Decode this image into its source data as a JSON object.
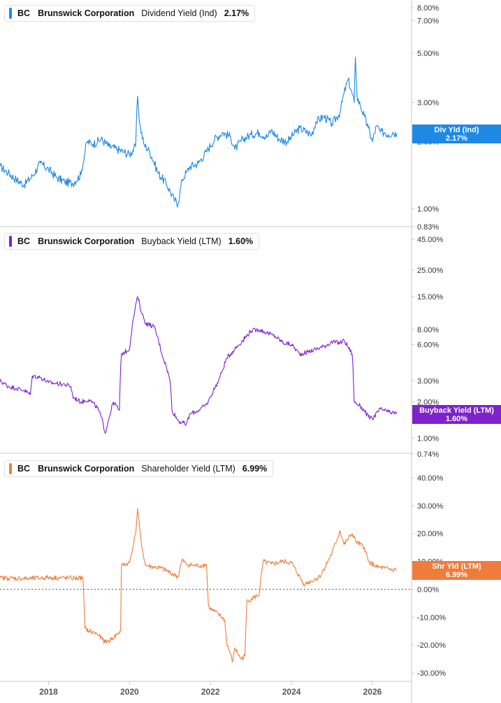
{
  "chart_data": [
    {
      "type": "line",
      "ticker": "BC",
      "company": "Brunswick Corporation",
      "metric": "Dividend Yield (Ind)",
      "value_label": "2.17%",
      "badge_title": "Div Yld (Ind)",
      "badge_value": "2.17%",
      "color": "#1e88e5",
      "scale": "log",
      "ylim": [
        0.83,
        9.0
      ],
      "y_ticks": [
        {
          "value": 8.0,
          "label": "8.00%"
        },
        {
          "value": 7.0,
          "label": "7.00%"
        },
        {
          "value": 5.0,
          "label": "5.00%"
        },
        {
          "value": 3.0,
          "label": "3.00%"
        },
        {
          "value": 2.0,
          "label": "2.00%"
        },
        {
          "value": 1.0,
          "label": "1.00%"
        },
        {
          "value": 0.83,
          "label": "0.83%"
        }
      ],
      "series": [
        {
          "x": [
            2016.8,
            2017.0,
            2017.2,
            2017.4,
            2017.6,
            2017.8,
            2018.0,
            2018.2,
            2018.4,
            2018.6,
            2018.8,
            2018.95,
            2019.1,
            2019.3,
            2019.5,
            2019.7,
            2019.85,
            2020.0,
            2020.15,
            2020.2,
            2020.25,
            2020.35,
            2020.5,
            2020.7,
            2020.9,
            2021.0,
            2021.1,
            2021.2,
            2021.3,
            2021.4,
            2021.5,
            2021.7,
            2021.9,
            2022.1,
            2022.3,
            2022.5,
            2022.6,
            2022.8,
            2023.0,
            2023.2,
            2023.4,
            2023.5,
            2023.7,
            2023.9,
            2024.0,
            2024.2,
            2024.4,
            2024.5,
            2024.6,
            2024.8,
            2025.0,
            2025.2,
            2025.3,
            2025.4,
            2025.55,
            2025.58,
            2025.62,
            2025.7,
            2025.8,
            2025.9,
            2026.0,
            2026.1,
            2026.2,
            2026.3,
            2026.4,
            2026.5,
            2026.6
          ],
          "y": [
            1.55,
            1.45,
            1.35,
            1.28,
            1.4,
            1.6,
            1.5,
            1.38,
            1.32,
            1.3,
            1.42,
            2.0,
            1.95,
            2.05,
            1.9,
            1.85,
            1.8,
            1.75,
            1.9,
            3.2,
            2.4,
            1.95,
            1.8,
            1.45,
            1.3,
            1.2,
            1.1,
            1.05,
            1.35,
            1.45,
            1.55,
            1.6,
            1.8,
            2.05,
            2.2,
            2.1,
            1.85,
            2.05,
            2.15,
            2.2,
            2.1,
            2.25,
            2.05,
            2.0,
            2.1,
            2.3,
            2.2,
            2.15,
            2.45,
            2.6,
            2.4,
            2.7,
            3.3,
            3.8,
            3.0,
            4.8,
            3.2,
            2.9,
            2.6,
            2.3,
            2.0,
            2.35,
            2.2,
            2.2,
            2.15,
            2.2,
            2.17
          ]
        }
      ]
    },
    {
      "type": "line",
      "ticker": "BC",
      "company": "Brunswick Corporation",
      "metric": "Buyback Yield (LTM)",
      "value_label": "1.60%",
      "badge_title": "Buyback Yield (LTM)",
      "badge_value": "1.60%",
      "color": "#7e22ce",
      "scale": "log",
      "ylim": [
        0.74,
        50.0
      ],
      "y_ticks": [
        {
          "value": 45.0,
          "label": "45.00%"
        },
        {
          "value": 25.0,
          "label": "25.00%"
        },
        {
          "value": 15.0,
          "label": "15.00%"
        },
        {
          "value": 8.0,
          "label": "8.00%"
        },
        {
          "value": 6.0,
          "label": "6.00%"
        },
        {
          "value": 3.0,
          "label": "3.00%"
        },
        {
          "value": 2.0,
          "label": "2.00%"
        },
        {
          "value": 1.0,
          "label": "1.00%"
        },
        {
          "value": 0.74,
          "label": "0.74%"
        }
      ],
      "series": [
        {
          "x": [
            2016.8,
            2017.0,
            2017.2,
            2017.4,
            2017.55,
            2017.6,
            2017.8,
            2018.0,
            2018.2,
            2018.4,
            2018.55,
            2018.6,
            2018.8,
            2019.0,
            2019.2,
            2019.3,
            2019.4,
            2019.5,
            2019.6,
            2019.75,
            2019.8,
            2020.0,
            2020.1,
            2020.2,
            2020.3,
            2020.4,
            2020.6,
            2020.8,
            2020.9,
            2021.0,
            2021.05,
            2021.2,
            2021.4,
            2021.5,
            2021.7,
            2021.9,
            2022.0,
            2022.2,
            2022.3,
            2022.4,
            2022.6,
            2022.8,
            2023.0,
            2023.2,
            2023.4,
            2023.6,
            2023.8,
            2024.0,
            2024.2,
            2024.4,
            2024.6,
            2024.8,
            2025.0,
            2025.2,
            2025.3,
            2025.5,
            2025.55,
            2025.7,
            2025.8,
            2025.9,
            2026.0,
            2026.2,
            2026.4,
            2026.6
          ],
          "y": [
            3.0,
            2.7,
            2.6,
            2.5,
            2.3,
            3.3,
            3.2,
            2.9,
            2.85,
            2.8,
            2.7,
            2.2,
            2.0,
            2.1,
            1.8,
            1.5,
            1.1,
            1.5,
            2.0,
            1.7,
            5.0,
            5.5,
            10.0,
            15.0,
            11.0,
            9.0,
            8.5,
            5.0,
            4.0,
            3.0,
            1.7,
            1.4,
            1.3,
            1.6,
            1.7,
            1.9,
            2.2,
            3.0,
            3.7,
            4.6,
            5.5,
            6.5,
            7.8,
            8.0,
            7.5,
            7.0,
            6.2,
            6.0,
            5.0,
            5.2,
            5.5,
            5.8,
            6.3,
            6.2,
            6.5,
            5.0,
            2.0,
            1.85,
            1.7,
            1.5,
            1.45,
            1.75,
            1.65,
            1.6
          ]
        }
      ]
    },
    {
      "type": "line",
      "ticker": "BC",
      "company": "Brunswick Corporation",
      "metric": "Shareholder Yield (LTM)",
      "value_label": "6.99%",
      "badge_title": "Shr Yld (LTM)",
      "badge_value": "6.99%",
      "color": "#f07c3c",
      "scale": "linear",
      "ylim": [
        -33.0,
        48.0
      ],
      "zero_line": true,
      "y_ticks": [
        {
          "value": 40,
          "label": "40.00%"
        },
        {
          "value": 30,
          "label": "30.00%"
        },
        {
          "value": 20,
          "label": "20.00%"
        },
        {
          "value": 10,
          "label": "10.00%"
        },
        {
          "value": 0,
          "label": "0.00%"
        },
        {
          "value": -10,
          "label": "-10.00%"
        },
        {
          "value": -20,
          "label": "-20.00%"
        },
        {
          "value": -30,
          "label": "-30.00%"
        }
      ],
      "series": [
        {
          "x": [
            2016.8,
            2017.0,
            2017.5,
            2018.0,
            2018.5,
            2018.85,
            2018.9,
            2019.0,
            2019.2,
            2019.4,
            2019.55,
            2019.7,
            2019.78,
            2019.8,
            2020.0,
            2020.15,
            2020.2,
            2020.3,
            2020.4,
            2020.6,
            2020.8,
            2021.0,
            2021.2,
            2021.3,
            2021.4,
            2021.6,
            2021.8,
            2021.9,
            2021.95,
            2022.0,
            2022.2,
            2022.35,
            2022.4,
            2022.55,
            2022.6,
            2022.75,
            2022.85,
            2022.9,
            2023.0,
            2023.2,
            2023.3,
            2023.5,
            2023.8,
            2024.0,
            2024.3,
            2024.35,
            2024.5,
            2024.7,
            2024.9,
            2025.0,
            2025.2,
            2025.3,
            2025.5,
            2025.6,
            2025.8,
            2025.9,
            2026.1,
            2026.3,
            2026.5,
            2026.6
          ],
          "y": [
            4.0,
            4.0,
            3.8,
            4.2,
            4.0,
            4.0,
            -14.0,
            -15.0,
            -16.0,
            -19.0,
            -18.0,
            -16.0,
            -15.0,
            8.5,
            9.5,
            20.0,
            29.0,
            15.0,
            8.5,
            8.0,
            7.5,
            6.0,
            4.5,
            10.5,
            9.0,
            8.5,
            8.5,
            9.0,
            -6.0,
            -7.0,
            -9.0,
            -11.0,
            -19.0,
            -26.0,
            -21.0,
            -25.0,
            -24.0,
            -4.0,
            -3.5,
            -2.0,
            10.0,
            9.0,
            10.0,
            9.5,
            2.0,
            2.0,
            3.0,
            4.5,
            10.0,
            13.0,
            21.0,
            16.0,
            20.0,
            17.0,
            15.0,
            10.0,
            8.0,
            7.5,
            7.0,
            6.99
          ]
        }
      ]
    }
  ],
  "x_axis": {
    "ticks": [
      {
        "value": 2018,
        "label": "2018"
      },
      {
        "value": 2020,
        "label": "2020"
      },
      {
        "value": 2022,
        "label": "2022"
      },
      {
        "value": 2024,
        "label": "2024"
      },
      {
        "value": 2026,
        "label": "2026"
      }
    ]
  }
}
